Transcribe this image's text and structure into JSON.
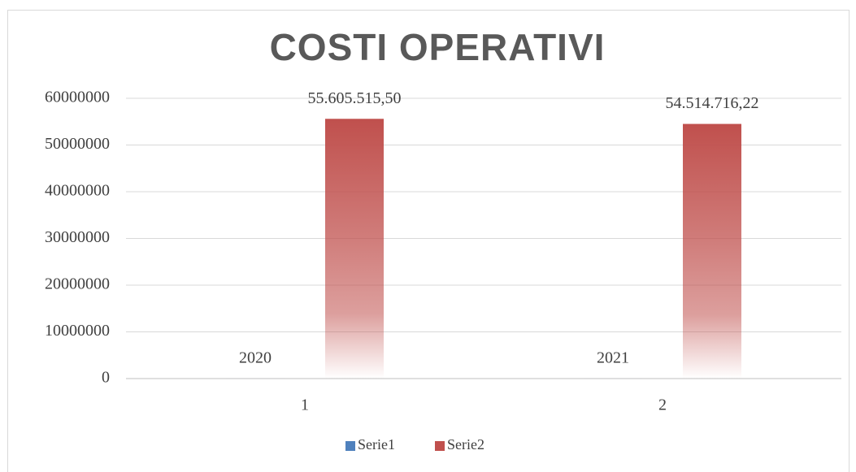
{
  "chart_data": {
    "type": "bar",
    "title": "COSTI OPERATIVI",
    "categories": [
      "1",
      "2"
    ],
    "series": [
      {
        "name": "Serie1",
        "color": "#4f81bd",
        "values": [
          2020,
          2021
        ]
      },
      {
        "name": "Serie2",
        "color": "#c0504d",
        "values": [
          55605515.5,
          54514716.22
        ],
        "value_labels": [
          "55.605.515,50",
          "54.514.716,22"
        ]
      }
    ],
    "ylim": [
      0,
      60000000
    ],
    "yticks": [
      0,
      10000000,
      20000000,
      30000000,
      40000000,
      50000000,
      60000000
    ],
    "grid": true,
    "legend": "bottom"
  }
}
